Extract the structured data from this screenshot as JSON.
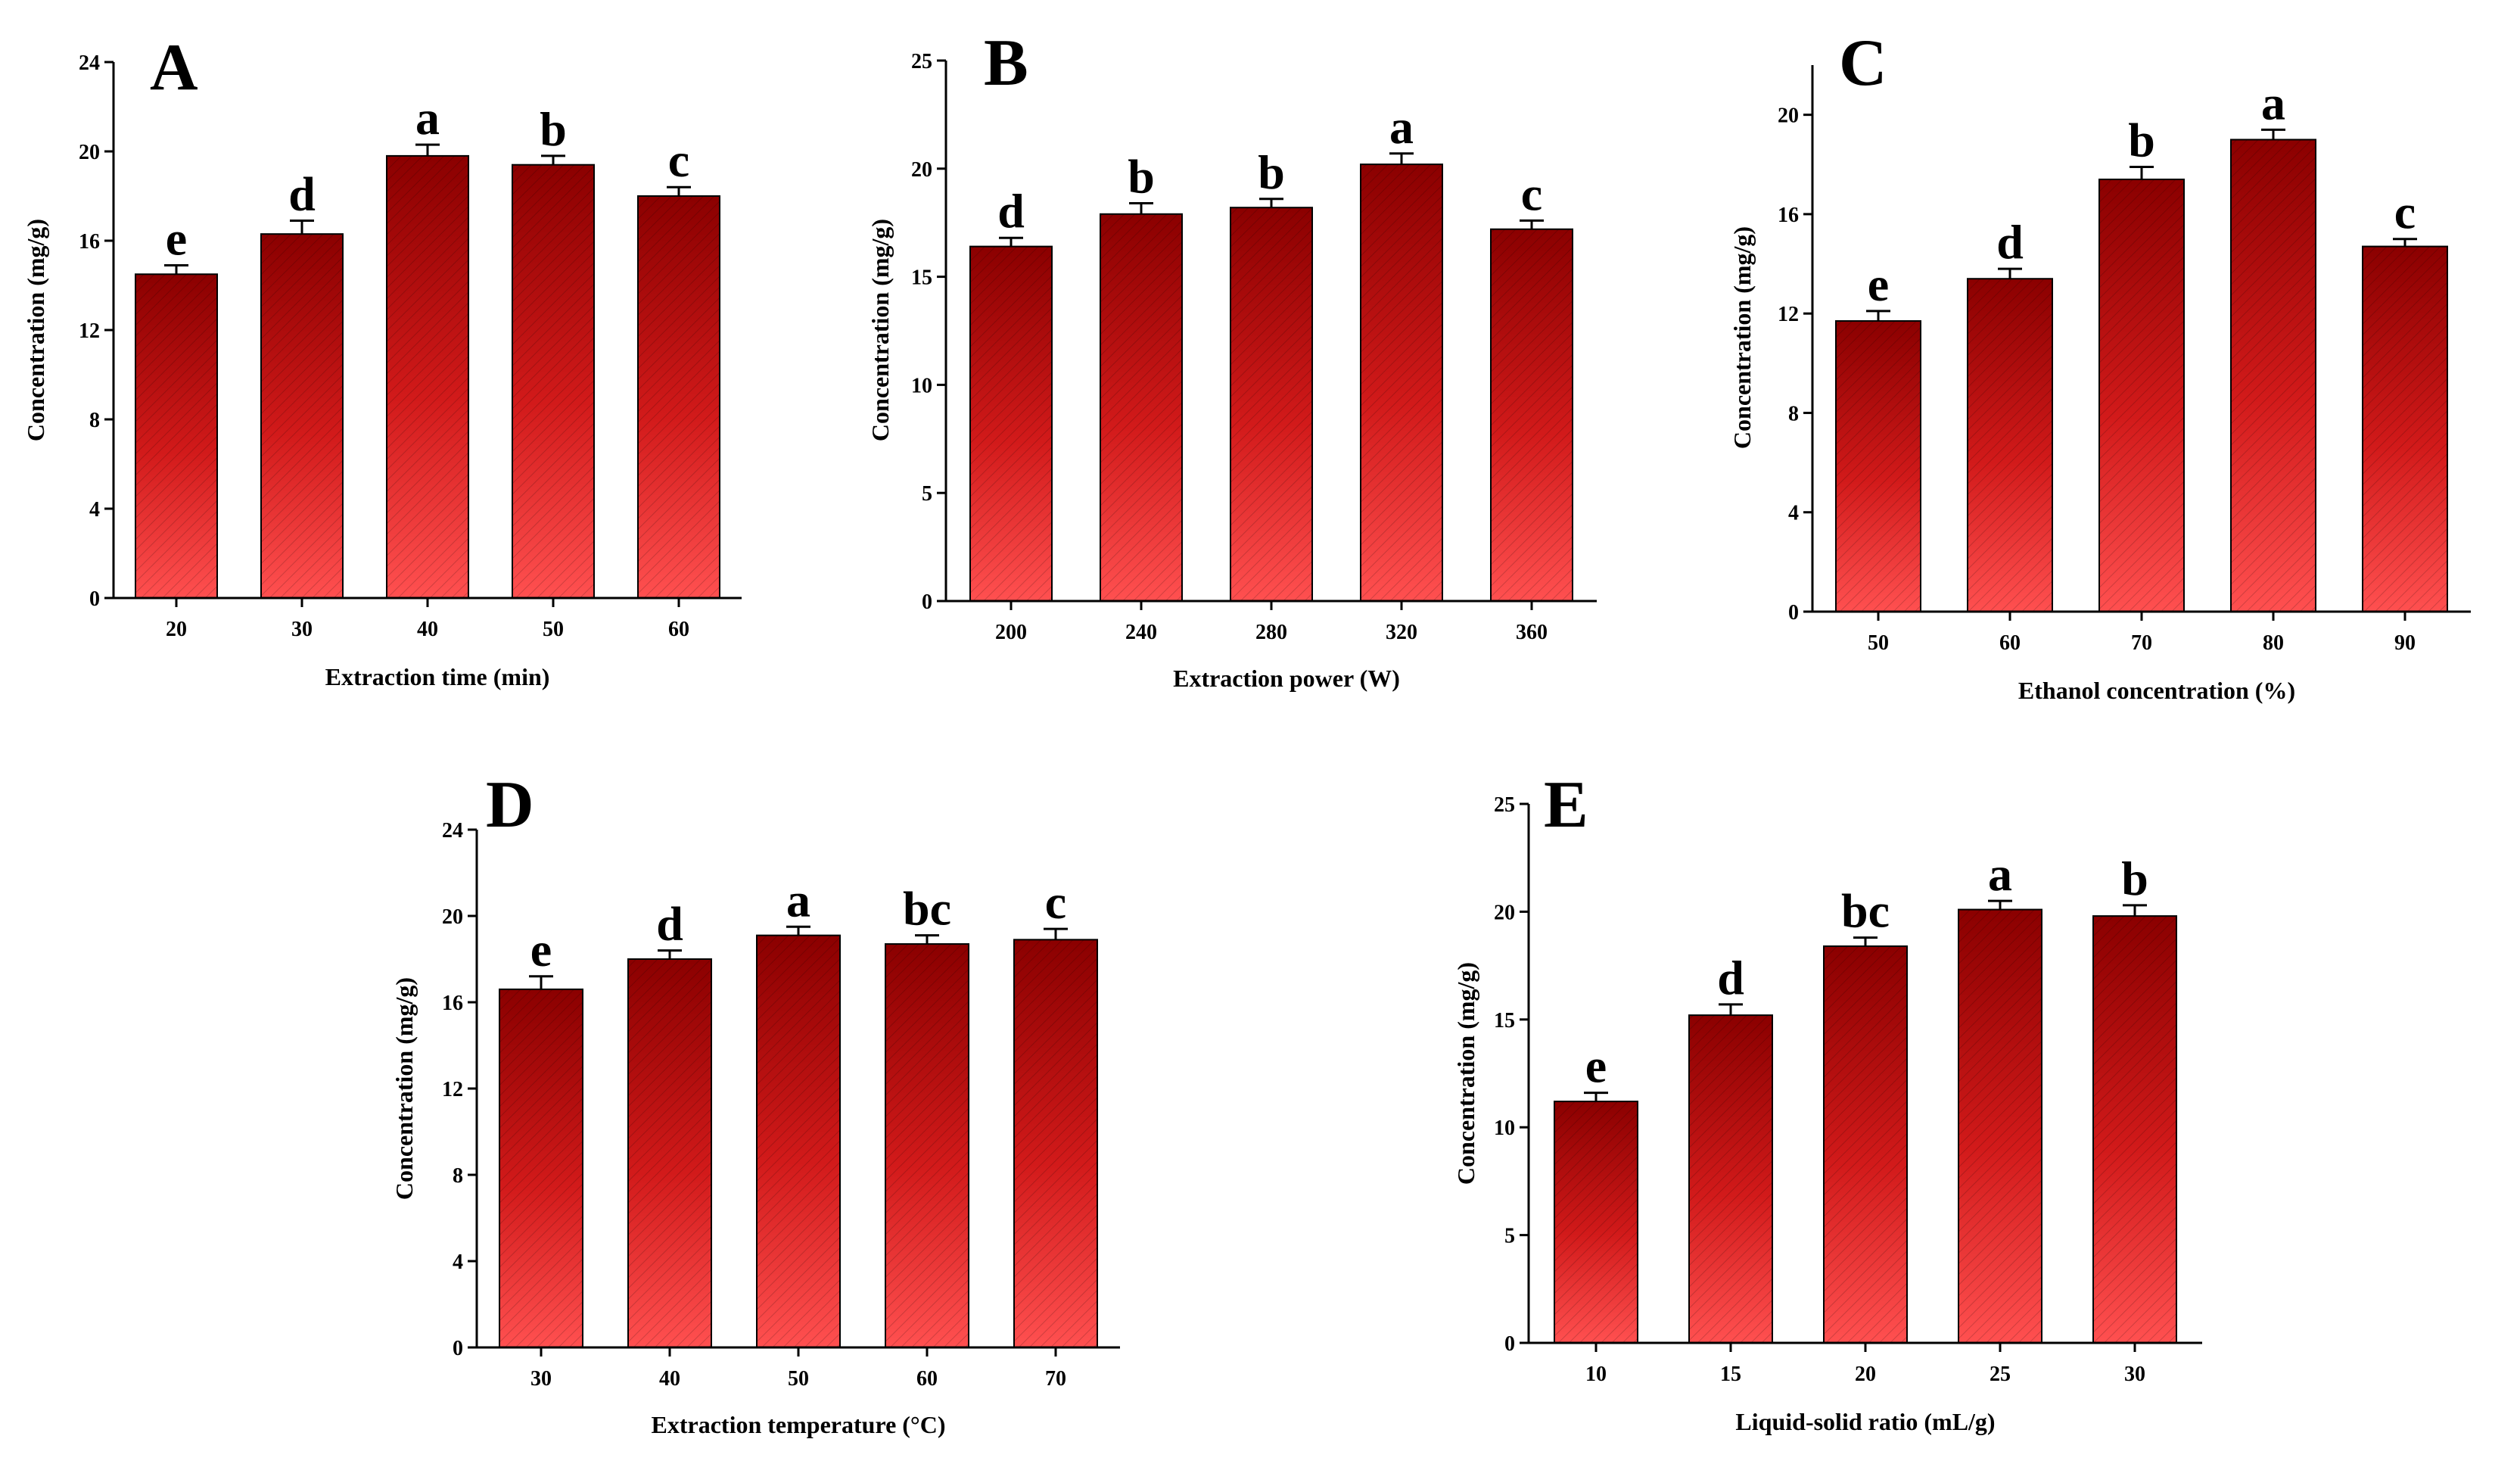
{
  "figure": {
    "accent_color": "#d91c1c",
    "dark_color": "#8b0000",
    "light_color": "#ff5050"
  },
  "chart_data": [
    {
      "panel": "A",
      "type": "bar",
      "categories": [
        "20",
        "30",
        "40",
        "50",
        "60"
      ],
      "values": [
        14.5,
        16.3,
        19.8,
        19.4,
        18.0
      ],
      "errors": [
        0.4,
        0.6,
        0.5,
        0.4,
        0.4
      ],
      "significance": [
        "e",
        "d",
        "a",
        "b",
        "c"
      ],
      "xlabel": "Extraction time (min)",
      "ylabel": "Concentration (mg/g)",
      "ylim": [
        0,
        24
      ],
      "yticks": [
        0,
        4,
        8,
        12,
        16,
        20,
        24
      ]
    },
    {
      "panel": "B",
      "type": "bar",
      "categories": [
        "200",
        "240",
        "280",
        "320",
        "360"
      ],
      "values": [
        16.4,
        17.9,
        18.2,
        20.2,
        17.2
      ],
      "errors": [
        0.4,
        0.5,
        0.4,
        0.5,
        0.4
      ],
      "significance": [
        "d",
        "b",
        "b",
        "a",
        "c"
      ],
      "xlabel": "Extraction power (W)",
      "ylabel": "Concentration (mg/g)",
      "ylim": [
        0,
        25
      ],
      "yticks": [
        0,
        5,
        10,
        15,
        20,
        25
      ]
    },
    {
      "panel": "C",
      "type": "bar",
      "categories": [
        "50",
        "60",
        "70",
        "80",
        "90"
      ],
      "values": [
        11.7,
        13.4,
        17.4,
        19.0,
        14.7
      ],
      "errors": [
        0.4,
        0.4,
        0.5,
        0.4,
        0.3
      ],
      "significance": [
        "e",
        "d",
        "b",
        "a",
        "c"
      ],
      "xlabel": "Ethanol concentration (%)",
      "ylabel": "Concentration (mg/g)",
      "ylim": [
        0,
        22
      ],
      "yticks": [
        0,
        4,
        8,
        12,
        16,
        20
      ]
    },
    {
      "panel": "D",
      "type": "bar",
      "categories": [
        "30",
        "40",
        "50",
        "60",
        "70"
      ],
      "values": [
        16.6,
        18.0,
        19.1,
        18.7,
        18.9
      ],
      "errors": [
        0.6,
        0.4,
        0.4,
        0.4,
        0.5
      ],
      "significance": [
        "e",
        "d",
        "a",
        "bc",
        "c"
      ],
      "xlabel": "Extraction temperature (°C)",
      "ylabel": "Concentration (mg/g)",
      "ylim": [
        0,
        24
      ],
      "yticks": [
        0,
        4,
        8,
        12,
        16,
        20,
        24
      ]
    },
    {
      "panel": "E",
      "type": "bar",
      "categories": [
        "10",
        "15",
        "20",
        "25",
        "30"
      ],
      "values": [
        11.2,
        15.2,
        18.4,
        20.1,
        19.8
      ],
      "errors": [
        0.4,
        0.5,
        0.4,
        0.4,
        0.5
      ],
      "significance": [
        "e",
        "d",
        "bc",
        "a",
        "b"
      ],
      "xlabel": "Liquid-solid ratio (mL/g)",
      "ylabel": "Concentration (mg/g)",
      "ylim": [
        0,
        25
      ],
      "yticks": [
        0,
        5,
        10,
        15,
        20,
        25
      ]
    }
  ]
}
